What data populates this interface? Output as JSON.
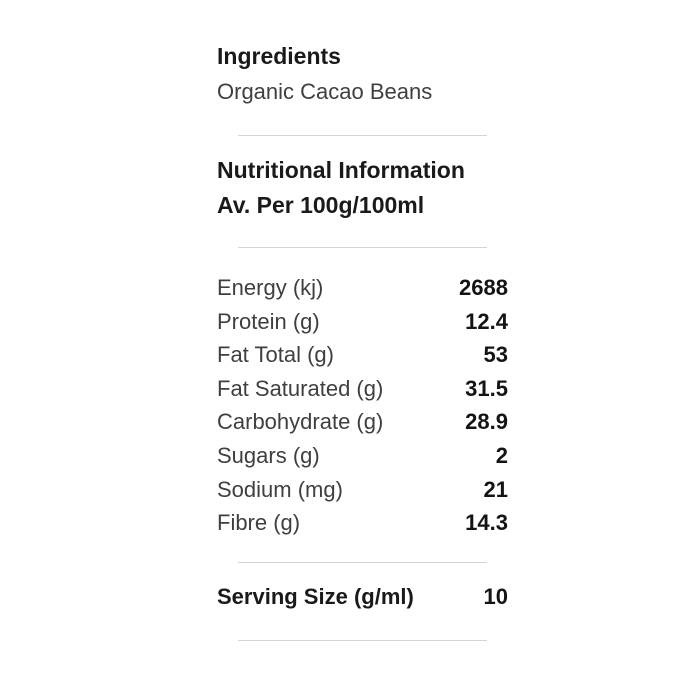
{
  "panel": {
    "ingredients": {
      "heading": "Ingredients",
      "value": "Organic Cacao Beans"
    },
    "nutrition": {
      "heading": "Nutritional Information",
      "subheading": "Av. Per 100g/100ml",
      "rows": [
        {
          "label": "Energy (kj)",
          "value": "2688"
        },
        {
          "label": "Protein (g)",
          "value": "12.4"
        },
        {
          "label": "Fat Total (g)",
          "value": "53"
        },
        {
          "label": "Fat Saturated (g)",
          "value": "31.5"
        },
        {
          "label": "Carbohydrate (g)",
          "value": "28.9"
        },
        {
          "label": "Sugars (g)",
          "value": "2"
        },
        {
          "label": "Sodium (mg)",
          "value": "21"
        },
        {
          "label": "Fibre (g)",
          "value": "14.3"
        }
      ]
    },
    "serving": {
      "label": "Serving Size (g/ml)",
      "value": "10"
    }
  },
  "colors": {
    "background": "#ffffff",
    "heading_text": "#1a1a1a",
    "body_text": "#3f3f3f",
    "value_text": "#141414",
    "divider": "#d4d4d4"
  }
}
